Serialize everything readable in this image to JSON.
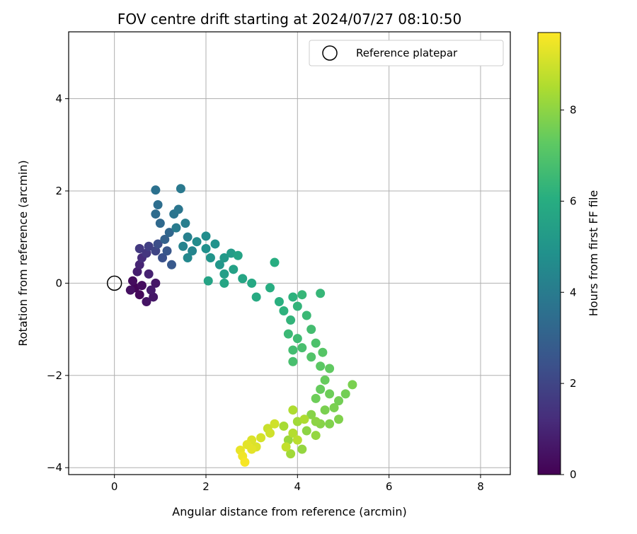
{
  "chart_data": {
    "type": "scatter",
    "title": "FOV centre drift starting at 2024/07/27 08:10:50",
    "xlabel": "Angular distance from reference (arcmin)",
    "ylabel": "Rotation from reference (arcmin)",
    "xlim": [
      -1,
      8.65
    ],
    "ylim": [
      -4.15,
      5.45
    ],
    "x_ticks": [
      0,
      2,
      4,
      6,
      8
    ],
    "y_ticks": [
      -4,
      -2,
      0,
      2,
      4
    ],
    "x_tick_labels": [
      "0",
      "2",
      "4",
      "6",
      "8"
    ],
    "y_tick_labels": [
      "−4",
      "−2",
      "0",
      "2",
      "4"
    ],
    "grid": true,
    "legend": {
      "placement": "top-right",
      "label": "Reference platepar"
    },
    "reference_point": {
      "x": 0,
      "y": 0
    },
    "colorbar": {
      "label": "Hours from first FF file",
      "colormap": "viridis",
      "range": [
        0,
        9.7
      ],
      "ticks": [
        0,
        2,
        4,
        6,
        8
      ],
      "tick_labels": [
        "0",
        "2",
        "4",
        "6",
        "8"
      ]
    },
    "points": [
      {
        "x": 0.45,
        "y": -0.1,
        "hours": 0.1
      },
      {
        "x": 0.55,
        "y": -0.25,
        "hours": 0.2
      },
      {
        "x": 0.4,
        "y": 0.05,
        "hours": 0.3
      },
      {
        "x": 0.6,
        "y": -0.05,
        "hours": 0.3
      },
      {
        "x": 0.7,
        "y": -0.4,
        "hours": 0.5
      },
      {
        "x": 0.85,
        "y": -0.3,
        "hours": 0.6
      },
      {
        "x": 0.9,
        "y": 0.0,
        "hours": 0.6
      },
      {
        "x": 0.5,
        "y": 0.25,
        "hours": 0.8
      },
      {
        "x": 0.75,
        "y": 0.2,
        "hours": 0.9
      },
      {
        "x": 0.55,
        "y": 0.4,
        "hours": 1.0
      },
      {
        "x": 0.35,
        "y": -0.15,
        "hours": 0.4
      },
      {
        "x": 0.8,
        "y": -0.15,
        "hours": 0.7
      },
      {
        "x": 0.6,
        "y": 0.55,
        "hours": 1.2
      },
      {
        "x": 0.7,
        "y": 0.65,
        "hours": 1.5
      },
      {
        "x": 0.55,
        "y": 0.75,
        "hours": 1.6
      },
      {
        "x": 0.75,
        "y": 0.8,
        "hours": 1.8
      },
      {
        "x": 0.9,
        "y": 0.7,
        "hours": 2.0
      },
      {
        "x": 0.95,
        "y": 0.85,
        "hours": 2.3
      },
      {
        "x": 1.05,
        "y": 0.55,
        "hours": 2.4
      },
      {
        "x": 1.15,
        "y": 0.7,
        "hours": 2.6
      },
      {
        "x": 1.25,
        "y": 0.4,
        "hours": 2.7
      },
      {
        "x": 1.1,
        "y": 0.95,
        "hours": 3.0
      },
      {
        "x": 1.2,
        "y": 1.1,
        "hours": 3.2
      },
      {
        "x": 1.0,
        "y": 1.3,
        "hours": 3.3
      },
      {
        "x": 0.9,
        "y": 1.5,
        "hours": 3.4
      },
      {
        "x": 0.95,
        "y": 1.7,
        "hours": 3.5
      },
      {
        "x": 0.9,
        "y": 2.02,
        "hours": 3.6
      },
      {
        "x": 1.3,
        "y": 1.5,
        "hours": 3.7
      },
      {
        "x": 1.4,
        "y": 1.6,
        "hours": 3.8
      },
      {
        "x": 1.45,
        "y": 2.05,
        "hours": 3.9
      },
      {
        "x": 1.35,
        "y": 1.2,
        "hours": 4.0
      },
      {
        "x": 1.55,
        "y": 1.3,
        "hours": 4.1
      },
      {
        "x": 1.6,
        "y": 1.0,
        "hours": 4.2
      },
      {
        "x": 1.5,
        "y": 0.8,
        "hours": 4.3
      },
      {
        "x": 1.7,
        "y": 0.7,
        "hours": 4.4
      },
      {
        "x": 1.6,
        "y": 0.55,
        "hours": 4.5
      },
      {
        "x": 1.8,
        "y": 0.9,
        "hours": 4.6
      },
      {
        "x": 2.0,
        "y": 1.02,
        "hours": 4.7
      },
      {
        "x": 2.0,
        "y": 0.75,
        "hours": 4.8
      },
      {
        "x": 2.2,
        "y": 0.85,
        "hours": 4.9
      },
      {
        "x": 2.1,
        "y": 0.55,
        "hours": 5.0
      },
      {
        "x": 2.3,
        "y": 0.4,
        "hours": 5.1
      },
      {
        "x": 2.4,
        "y": 0.55,
        "hours": 5.2
      },
      {
        "x": 2.55,
        "y": 0.65,
        "hours": 5.3
      },
      {
        "x": 2.4,
        "y": 0.2,
        "hours": 5.4
      },
      {
        "x": 2.6,
        "y": 0.3,
        "hours": 5.5
      },
      {
        "x": 2.7,
        "y": 0.6,
        "hours": 5.6
      },
      {
        "x": 2.8,
        "y": 0.1,
        "hours": 5.7
      },
      {
        "x": 3.0,
        "y": 0.0,
        "hours": 5.8
      },
      {
        "x": 2.05,
        "y": 0.05,
        "hours": 5.6
      },
      {
        "x": 2.4,
        "y": 0.0,
        "hours": 5.7
      },
      {
        "x": 3.1,
        "y": -0.3,
        "hours": 5.9
      },
      {
        "x": 3.5,
        "y": 0.45,
        "hours": 6.0
      },
      {
        "x": 3.4,
        "y": -0.1,
        "hours": 6.0
      },
      {
        "x": 3.6,
        "y": -0.4,
        "hours": 6.1
      },
      {
        "x": 3.7,
        "y": -0.6,
        "hours": 6.2
      },
      {
        "x": 3.9,
        "y": -0.3,
        "hours": 6.2
      },
      {
        "x": 4.0,
        "y": -0.5,
        "hours": 6.3
      },
      {
        "x": 3.85,
        "y": -0.8,
        "hours": 6.3
      },
      {
        "x": 4.1,
        "y": -0.25,
        "hours": 6.4
      },
      {
        "x": 4.5,
        "y": -0.22,
        "hours": 6.4
      },
      {
        "x": 4.2,
        "y": -0.7,
        "hours": 6.5
      },
      {
        "x": 3.8,
        "y": -1.1,
        "hours": 6.5
      },
      {
        "x": 4.0,
        "y": -1.2,
        "hours": 6.6
      },
      {
        "x": 4.3,
        "y": -1.0,
        "hours": 6.7
      },
      {
        "x": 3.9,
        "y": -1.45,
        "hours": 6.7
      },
      {
        "x": 3.9,
        "y": -1.7,
        "hours": 6.8
      },
      {
        "x": 4.1,
        "y": -1.4,
        "hours": 6.8
      },
      {
        "x": 4.4,
        "y": -1.3,
        "hours": 6.9
      },
      {
        "x": 4.3,
        "y": -1.6,
        "hours": 7.0
      },
      {
        "x": 4.55,
        "y": -1.5,
        "hours": 7.1
      },
      {
        "x": 4.5,
        "y": -1.8,
        "hours": 7.2
      },
      {
        "x": 4.7,
        "y": -1.85,
        "hours": 7.3
      },
      {
        "x": 4.6,
        "y": -2.1,
        "hours": 7.4
      },
      {
        "x": 4.5,
        "y": -2.3,
        "hours": 7.4
      },
      {
        "x": 4.7,
        "y": -2.4,
        "hours": 7.5
      },
      {
        "x": 4.4,
        "y": -2.5,
        "hours": 7.5
      },
      {
        "x": 4.9,
        "y": -2.55,
        "hours": 7.6
      },
      {
        "x": 5.05,
        "y": -2.4,
        "hours": 7.6
      },
      {
        "x": 5.2,
        "y": -2.2,
        "hours": 7.7
      },
      {
        "x": 4.6,
        "y": -2.75,
        "hours": 7.7
      },
      {
        "x": 4.8,
        "y": -2.7,
        "hours": 7.7
      },
      {
        "x": 4.9,
        "y": -2.95,
        "hours": 7.8
      },
      {
        "x": 4.7,
        "y": -3.05,
        "hours": 7.8
      },
      {
        "x": 4.5,
        "y": -3.05,
        "hours": 7.9
      },
      {
        "x": 4.3,
        "y": -2.85,
        "hours": 7.9
      },
      {
        "x": 4.4,
        "y": -3.0,
        "hours": 8.0
      },
      {
        "x": 4.2,
        "y": -3.2,
        "hours": 8.0
      },
      {
        "x": 4.4,
        "y": -3.3,
        "hours": 8.1
      },
      {
        "x": 4.1,
        "y": -3.6,
        "hours": 8.1
      },
      {
        "x": 3.8,
        "y": -3.4,
        "hours": 8.2
      },
      {
        "x": 3.85,
        "y": -3.7,
        "hours": 8.3
      },
      {
        "x": 4.0,
        "y": -3.0,
        "hours": 8.3
      },
      {
        "x": 3.7,
        "y": -3.1,
        "hours": 8.4
      },
      {
        "x": 3.9,
        "y": -2.75,
        "hours": 8.5
      },
      {
        "x": 4.15,
        "y": -2.95,
        "hours": 8.5
      },
      {
        "x": 3.9,
        "y": -3.25,
        "hours": 8.6
      },
      {
        "x": 4.0,
        "y": -3.4,
        "hours": 8.7
      },
      {
        "x": 3.75,
        "y": -3.55,
        "hours": 8.8
      },
      {
        "x": 3.35,
        "y": -3.15,
        "hours": 8.9
      },
      {
        "x": 3.5,
        "y": -3.05,
        "hours": 9.0
      },
      {
        "x": 3.4,
        "y": -3.25,
        "hours": 9.0
      },
      {
        "x": 3.2,
        "y": -3.35,
        "hours": 9.1
      },
      {
        "x": 3.0,
        "y": -3.4,
        "hours": 9.2
      },
      {
        "x": 3.1,
        "y": -3.55,
        "hours": 9.2
      },
      {
        "x": 2.9,
        "y": -3.5,
        "hours": 9.3
      },
      {
        "x": 3.0,
        "y": -3.6,
        "hours": 9.3
      },
      {
        "x": 2.75,
        "y": -3.62,
        "hours": 9.4
      },
      {
        "x": 2.8,
        "y": -3.75,
        "hours": 9.5
      },
      {
        "x": 2.85,
        "y": -3.88,
        "hours": 9.6
      }
    ]
  }
}
